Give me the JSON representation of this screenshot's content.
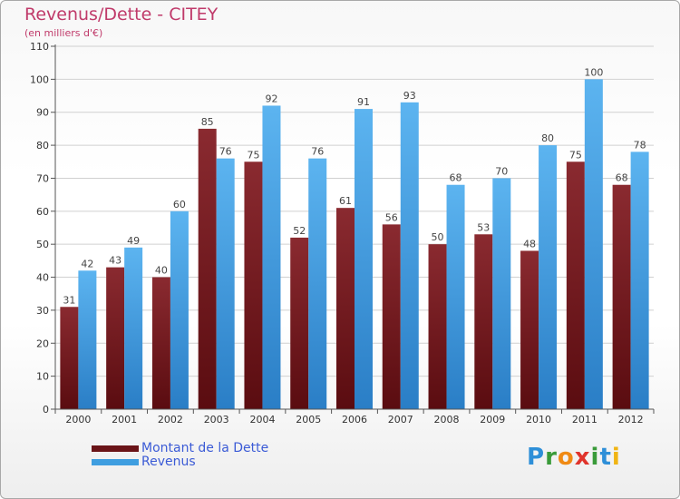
{
  "title": "Revenus/Dette - CITEY",
  "subtitle": "(en milliers d'€)",
  "logo": {
    "letters": [
      {
        "ch": "P",
        "color": "#2e8fd8"
      },
      {
        "ch": "r",
        "color": "#3a9b3a"
      },
      {
        "ch": "o",
        "color": "#f08a14"
      },
      {
        "ch": "x",
        "color": "#e0342c"
      },
      {
        "ch": "i",
        "color": "#3a9b3a"
      },
      {
        "ch": "t",
        "color": "#2e8fd8"
      },
      {
        "ch": "i",
        "color": "#f0b414"
      }
    ]
  },
  "chart_data": {
    "type": "bar",
    "title": "Revenus/Dette - CITEY",
    "subtitle": "(en milliers d'€)",
    "categories": [
      "2000",
      "2001",
      "2002",
      "2003",
      "2004",
      "2005",
      "2006",
      "2007",
      "2008",
      "2009",
      "2010",
      "2011",
      "2012"
    ],
    "series": [
      {
        "name": "Montant de la Dette",
        "color": "#7a1c22",
        "values": [
          31,
          43,
          40,
          85,
          75,
          52,
          61,
          56,
          50,
          53,
          48,
          75,
          68
        ]
      },
      {
        "name": "Revenus",
        "color": "#3f9ee0",
        "values": [
          42,
          49,
          60,
          76,
          92,
          76,
          91,
          93,
          68,
          70,
          80,
          100,
          78
        ]
      }
    ],
    "ylim": [
      0,
      110
    ],
    "yticks": [
      0,
      10,
      20,
      30,
      40,
      50,
      60,
      70,
      80,
      90,
      100,
      110
    ],
    "grid": true,
    "legend_position": "bottom-left"
  }
}
